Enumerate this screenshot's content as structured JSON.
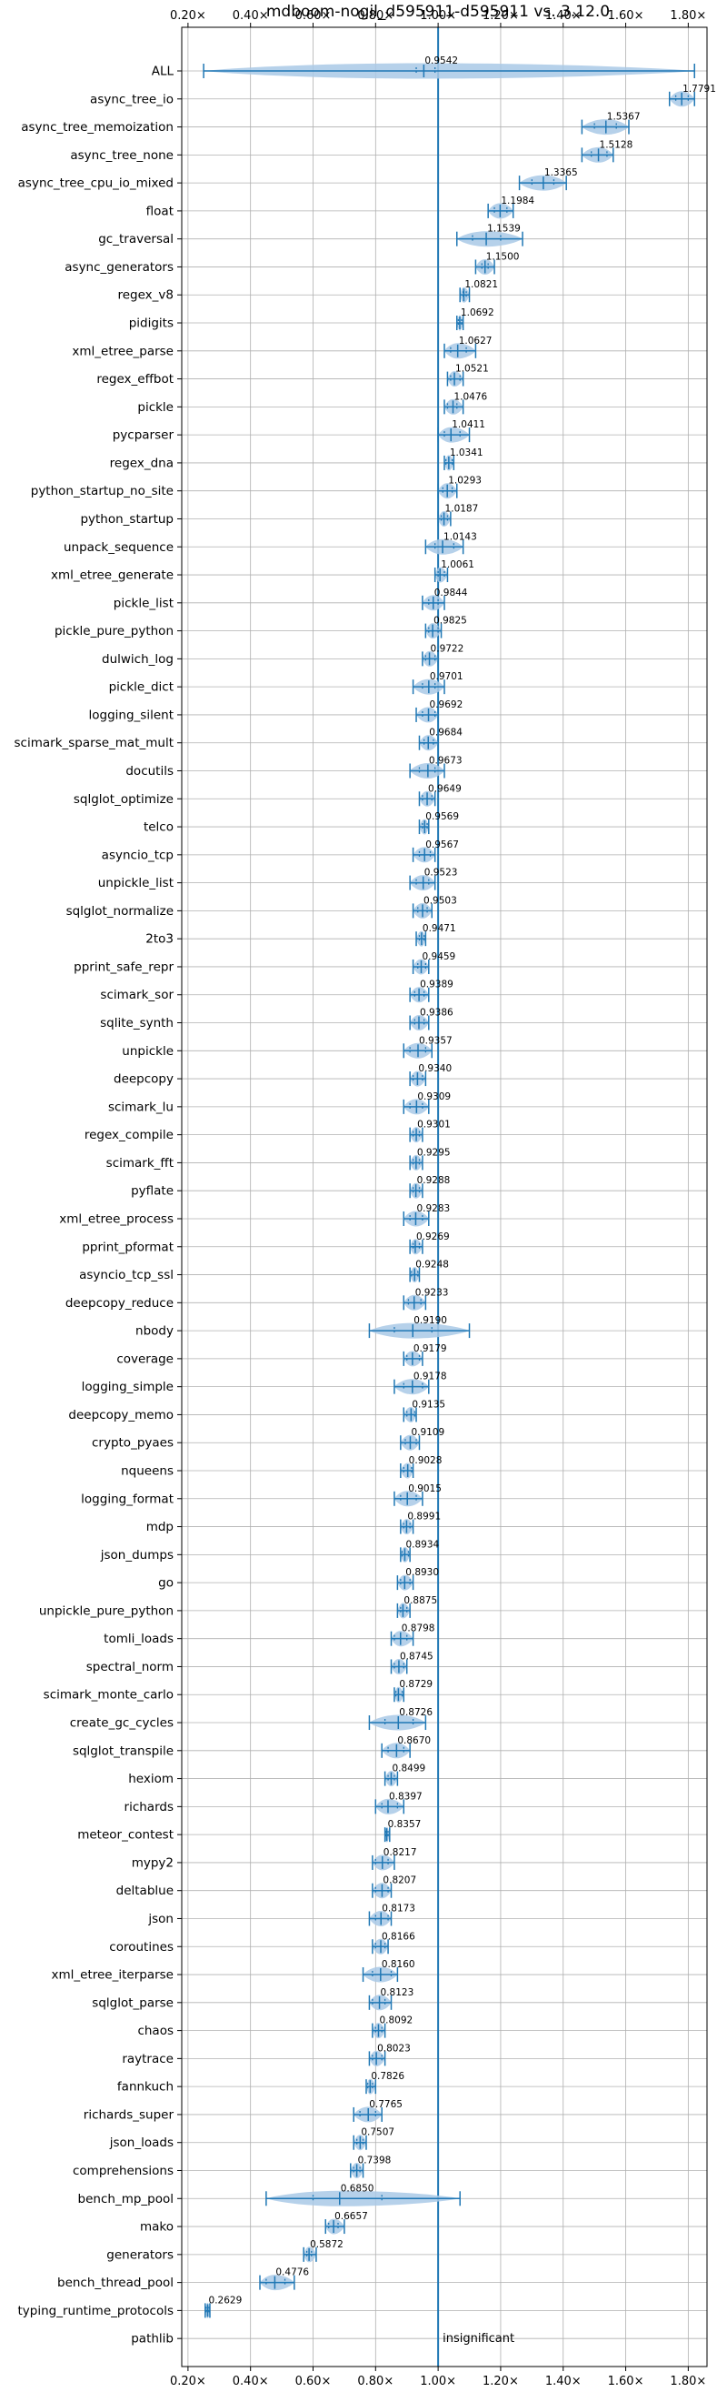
{
  "chart_data": {
    "type": "violin",
    "title": "mdboom-nogil_d595911-d595911 vs. 3.12.0",
    "xlabel": "",
    "ylabel": "",
    "xlim": [
      0.18,
      1.86
    ],
    "x_ticks": [
      0.2,
      0.4,
      0.6,
      0.8,
      1.0,
      1.2,
      1.4,
      1.6,
      1.8
    ],
    "x_tick_labels": [
      "0.20×",
      "0.40×",
      "0.60×",
      "0.80×",
      "1.00×",
      "1.20×",
      "1.40×",
      "1.60×",
      "1.80×"
    ],
    "reference_line": 1.0,
    "grid": true,
    "colors": {
      "accent": "#1f77b4",
      "violin": "#a9c9e6",
      "grid": "#b0b0b0"
    },
    "categories": [
      {
        "label": "ALL",
        "value": 0.9542,
        "value_label": "0.9542",
        "min": 0.25,
        "max": 1.82,
        "q1": 0.93,
        "q3": 0.99
      },
      {
        "label": "async_tree_io",
        "value": 1.7791,
        "value_label": "1.7791",
        "min": 1.74,
        "max": 1.82,
        "q1": 1.76,
        "q3": 1.8
      },
      {
        "label": "async_tree_memoization",
        "value": 1.5367,
        "value_label": "1.5367",
        "min": 1.46,
        "max": 1.61,
        "q1": 1.5,
        "q3": 1.57
      },
      {
        "label": "async_tree_none",
        "value": 1.5128,
        "value_label": "1.5128",
        "min": 1.46,
        "max": 1.56,
        "q1": 1.49,
        "q3": 1.54
      },
      {
        "label": "async_tree_cpu_io_mixed",
        "value": 1.3365,
        "value_label": "1.3365",
        "min": 1.26,
        "max": 1.41,
        "q1": 1.3,
        "q3": 1.37
      },
      {
        "label": "float",
        "value": 1.1984,
        "value_label": "1.1984",
        "min": 1.16,
        "max": 1.24,
        "q1": 1.18,
        "q3": 1.22
      },
      {
        "label": "gc_traversal",
        "value": 1.1539,
        "value_label": "1.1539",
        "min": 1.06,
        "max": 1.27,
        "q1": 1.11,
        "q3": 1.2
      },
      {
        "label": "async_generators",
        "value": 1.15,
        "value_label": "1.1500",
        "min": 1.12,
        "max": 1.18,
        "q1": 1.14,
        "q3": 1.16
      },
      {
        "label": "regex_v8",
        "value": 1.0821,
        "value_label": "1.0821",
        "min": 1.07,
        "max": 1.1,
        "q1": 1.08,
        "q3": 1.09
      },
      {
        "label": "pidigits",
        "value": 1.0692,
        "value_label": "1.0692",
        "min": 1.06,
        "max": 1.08,
        "q1": 1.065,
        "q3": 1.075
      },
      {
        "label": "xml_etree_parse",
        "value": 1.0627,
        "value_label": "1.0627",
        "min": 1.02,
        "max": 1.12,
        "q1": 1.04,
        "q3": 1.09
      },
      {
        "label": "regex_effbot",
        "value": 1.0521,
        "value_label": "1.0521",
        "min": 1.03,
        "max": 1.08,
        "q1": 1.04,
        "q3": 1.07
      },
      {
        "label": "pickle",
        "value": 1.0476,
        "value_label": "1.0476",
        "min": 1.02,
        "max": 1.08,
        "q1": 1.03,
        "q3": 1.06
      },
      {
        "label": "pycparser",
        "value": 1.0411,
        "value_label": "1.0411",
        "min": 1.0,
        "max": 1.1,
        "q1": 1.02,
        "q3": 1.07
      },
      {
        "label": "regex_dna",
        "value": 1.0341,
        "value_label": "1.0341",
        "min": 1.02,
        "max": 1.05,
        "q1": 1.025,
        "q3": 1.045
      },
      {
        "label": "python_startup_no_site",
        "value": 1.0293,
        "value_label": "1.0293",
        "min": 1.0,
        "max": 1.06,
        "q1": 1.015,
        "q3": 1.045
      },
      {
        "label": "python_startup",
        "value": 1.0187,
        "value_label": "1.0187",
        "min": 1.0,
        "max": 1.04,
        "q1": 1.01,
        "q3": 1.03
      },
      {
        "label": "unpack_sequence",
        "value": 1.0143,
        "value_label": "1.0143",
        "min": 0.96,
        "max": 1.08,
        "q1": 0.99,
        "q3": 1.05
      },
      {
        "label": "xml_etree_generate",
        "value": 1.0061,
        "value_label": "1.0061",
        "min": 0.99,
        "max": 1.03,
        "q1": 1.0,
        "q3": 1.02
      },
      {
        "label": "pickle_list",
        "value": 0.9844,
        "value_label": "0.9844",
        "min": 0.95,
        "max": 1.02,
        "q1": 0.97,
        "q3": 1.0
      },
      {
        "label": "pickle_pure_python",
        "value": 0.9825,
        "value_label": "0.9825",
        "min": 0.96,
        "max": 1.01,
        "q1": 0.97,
        "q3": 1.0
      },
      {
        "label": "dulwich_log",
        "value": 0.9722,
        "value_label": "0.9722",
        "min": 0.95,
        "max": 1.0,
        "q1": 0.96,
        "q3": 0.99
      },
      {
        "label": "pickle_dict",
        "value": 0.9701,
        "value_label": "0.9701",
        "min": 0.92,
        "max": 1.02,
        "q1": 0.95,
        "q3": 0.99
      },
      {
        "label": "logging_silent",
        "value": 0.9692,
        "value_label": "0.9692",
        "min": 0.93,
        "max": 1.0,
        "q1": 0.95,
        "q3": 0.99
      },
      {
        "label": "scimark_sparse_mat_mult",
        "value": 0.9684,
        "value_label": "0.9684",
        "min": 0.94,
        "max": 1.0,
        "q1": 0.955,
        "q3": 0.985
      },
      {
        "label": "docutils",
        "value": 0.9673,
        "value_label": "0.9673",
        "min": 0.91,
        "max": 1.02,
        "q1": 0.94,
        "q3": 0.99
      },
      {
        "label": "sqlglot_optimize",
        "value": 0.9649,
        "value_label": "0.9649",
        "min": 0.94,
        "max": 0.99,
        "q1": 0.95,
        "q3": 0.98
      },
      {
        "label": "telco",
        "value": 0.9569,
        "value_label": "0.9569",
        "min": 0.94,
        "max": 0.97,
        "q1": 0.95,
        "q3": 0.965
      },
      {
        "label": "asyncio_tcp",
        "value": 0.9567,
        "value_label": "0.9567",
        "min": 0.92,
        "max": 0.99,
        "q1": 0.94,
        "q3": 0.975
      },
      {
        "label": "unpickle_list",
        "value": 0.9523,
        "value_label": "0.9523",
        "min": 0.91,
        "max": 0.99,
        "q1": 0.93,
        "q3": 0.97
      },
      {
        "label": "sqlglot_normalize",
        "value": 0.9503,
        "value_label": "0.9503",
        "min": 0.92,
        "max": 0.98,
        "q1": 0.935,
        "q3": 0.965
      },
      {
        "label": "2to3",
        "value": 0.9471,
        "value_label": "0.9471",
        "min": 0.93,
        "max": 0.96,
        "q1": 0.94,
        "q3": 0.955
      },
      {
        "label": "pprint_safe_repr",
        "value": 0.9459,
        "value_label": "0.9459",
        "min": 0.92,
        "max": 0.97,
        "q1": 0.935,
        "q3": 0.96
      },
      {
        "label": "scimark_sor",
        "value": 0.9389,
        "value_label": "0.9389",
        "min": 0.91,
        "max": 0.97,
        "q1": 0.925,
        "q3": 0.955
      },
      {
        "label": "sqlite_synth",
        "value": 0.9386,
        "value_label": "0.9386",
        "min": 0.91,
        "max": 0.97,
        "q1": 0.925,
        "q3": 0.955
      },
      {
        "label": "unpickle",
        "value": 0.9357,
        "value_label": "0.9357",
        "min": 0.89,
        "max": 0.98,
        "q1": 0.91,
        "q3": 0.96
      },
      {
        "label": "deepcopy",
        "value": 0.934,
        "value_label": "0.9340",
        "min": 0.91,
        "max": 0.96,
        "q1": 0.92,
        "q3": 0.95
      },
      {
        "label": "scimark_lu",
        "value": 0.9309,
        "value_label": "0.9309",
        "min": 0.89,
        "max": 0.97,
        "q1": 0.91,
        "q3": 0.95
      },
      {
        "label": "regex_compile",
        "value": 0.9301,
        "value_label": "0.9301",
        "min": 0.91,
        "max": 0.95,
        "q1": 0.92,
        "q3": 0.94
      },
      {
        "label": "scimark_fft",
        "value": 0.9295,
        "value_label": "0.9295",
        "min": 0.91,
        "max": 0.95,
        "q1": 0.92,
        "q3": 0.94
      },
      {
        "label": "pyflate",
        "value": 0.9288,
        "value_label": "0.9288",
        "min": 0.91,
        "max": 0.95,
        "q1": 0.92,
        "q3": 0.94
      },
      {
        "label": "xml_etree_process",
        "value": 0.9283,
        "value_label": "0.9283",
        "min": 0.89,
        "max": 0.97,
        "q1": 0.91,
        "q3": 0.95
      },
      {
        "label": "pprint_pformat",
        "value": 0.9269,
        "value_label": "0.9269",
        "min": 0.91,
        "max": 0.95,
        "q1": 0.92,
        "q3": 0.94
      },
      {
        "label": "asyncio_tcp_ssl",
        "value": 0.9248,
        "value_label": "0.9248",
        "min": 0.91,
        "max": 0.94,
        "q1": 0.915,
        "q3": 0.935
      },
      {
        "label": "deepcopy_reduce",
        "value": 0.9233,
        "value_label": "0.9233",
        "min": 0.89,
        "max": 0.96,
        "q1": 0.905,
        "q3": 0.945
      },
      {
        "label": "nbody",
        "value": 0.919,
        "value_label": "0.9190",
        "min": 0.78,
        "max": 1.1,
        "q1": 0.86,
        "q3": 0.98
      },
      {
        "label": "coverage",
        "value": 0.9179,
        "value_label": "0.9179",
        "min": 0.89,
        "max": 0.95,
        "q1": 0.9,
        "q3": 0.94
      },
      {
        "label": "logging_simple",
        "value": 0.9178,
        "value_label": "0.9178",
        "min": 0.86,
        "max": 0.97,
        "q1": 0.89,
        "q3": 0.95
      },
      {
        "label": "deepcopy_memo",
        "value": 0.9135,
        "value_label": "0.9135",
        "min": 0.89,
        "max": 0.93,
        "q1": 0.9,
        "q3": 0.925
      },
      {
        "label": "crypto_pyaes",
        "value": 0.9109,
        "value_label": "0.9109",
        "min": 0.88,
        "max": 0.94,
        "q1": 0.895,
        "q3": 0.93
      },
      {
        "label": "nqueens",
        "value": 0.9028,
        "value_label": "0.9028",
        "min": 0.88,
        "max": 0.92,
        "q1": 0.89,
        "q3": 0.915
      },
      {
        "label": "logging_format",
        "value": 0.9015,
        "value_label": "0.9015",
        "min": 0.86,
        "max": 0.95,
        "q1": 0.88,
        "q3": 0.93
      },
      {
        "label": "mdp",
        "value": 0.8991,
        "value_label": "0.8991",
        "min": 0.88,
        "max": 0.92,
        "q1": 0.89,
        "q3": 0.91
      },
      {
        "label": "json_dumps",
        "value": 0.8934,
        "value_label": "0.8934",
        "min": 0.88,
        "max": 0.91,
        "q1": 0.885,
        "q3": 0.905
      },
      {
        "label": "go",
        "value": 0.893,
        "value_label": "0.8930",
        "min": 0.87,
        "max": 0.92,
        "q1": 0.88,
        "q3": 0.91
      },
      {
        "label": "unpickle_pure_python",
        "value": 0.8875,
        "value_label": "0.8875",
        "min": 0.87,
        "max": 0.91,
        "q1": 0.88,
        "q3": 0.9
      },
      {
        "label": "tomli_loads",
        "value": 0.8798,
        "value_label": "0.8798",
        "min": 0.85,
        "max": 0.92,
        "q1": 0.86,
        "q3": 0.9
      },
      {
        "label": "spectral_norm",
        "value": 0.8745,
        "value_label": "0.8745",
        "min": 0.85,
        "max": 0.9,
        "q1": 0.86,
        "q3": 0.89
      },
      {
        "label": "scimark_monte_carlo",
        "value": 0.8729,
        "value_label": "0.8729",
        "min": 0.86,
        "max": 0.89,
        "q1": 0.865,
        "q3": 0.885
      },
      {
        "label": "create_gc_cycles",
        "value": 0.8726,
        "value_label": "0.8726",
        "min": 0.78,
        "max": 0.96,
        "q1": 0.83,
        "q3": 0.92
      },
      {
        "label": "sqlglot_transpile",
        "value": 0.867,
        "value_label": "0.8670",
        "min": 0.82,
        "max": 0.91,
        "q1": 0.84,
        "q3": 0.89
      },
      {
        "label": "hexiom",
        "value": 0.8499,
        "value_label": "0.8499",
        "min": 0.83,
        "max": 0.87,
        "q1": 0.84,
        "q3": 0.86
      },
      {
        "label": "richards",
        "value": 0.8397,
        "value_label": "0.8397",
        "min": 0.8,
        "max": 0.89,
        "q1": 0.82,
        "q3": 0.87
      },
      {
        "label": "meteor_contest",
        "value": 0.8357,
        "value_label": "0.8357",
        "min": 0.83,
        "max": 0.845,
        "q1": 0.833,
        "q3": 0.84
      },
      {
        "label": "mypy2",
        "value": 0.8217,
        "value_label": "0.8217",
        "min": 0.79,
        "max": 0.86,
        "q1": 0.8,
        "q3": 0.84
      },
      {
        "label": "deltablue",
        "value": 0.8207,
        "value_label": "0.8207",
        "min": 0.79,
        "max": 0.85,
        "q1": 0.8,
        "q3": 0.84
      },
      {
        "label": "json",
        "value": 0.8173,
        "value_label": "0.8173",
        "min": 0.78,
        "max": 0.85,
        "q1": 0.8,
        "q3": 0.84
      },
      {
        "label": "coroutines",
        "value": 0.8166,
        "value_label": "0.8166",
        "min": 0.79,
        "max": 0.84,
        "q1": 0.8,
        "q3": 0.83
      },
      {
        "label": "xml_etree_iterparse",
        "value": 0.816,
        "value_label": "0.8160",
        "min": 0.76,
        "max": 0.87,
        "q1": 0.79,
        "q3": 0.85
      },
      {
        "label": "sqlglot_parse",
        "value": 0.8123,
        "value_label": "0.8123",
        "min": 0.78,
        "max": 0.85,
        "q1": 0.79,
        "q3": 0.83
      },
      {
        "label": "chaos",
        "value": 0.8092,
        "value_label": "0.8092",
        "min": 0.79,
        "max": 0.83,
        "q1": 0.8,
        "q3": 0.82
      },
      {
        "label": "raytrace",
        "value": 0.8023,
        "value_label": "0.8023",
        "min": 0.78,
        "max": 0.83,
        "q1": 0.79,
        "q3": 0.82
      },
      {
        "label": "fannkuch",
        "value": 0.7826,
        "value_label": "0.7826",
        "min": 0.77,
        "max": 0.8,
        "q1": 0.775,
        "q3": 0.79
      },
      {
        "label": "richards_super",
        "value": 0.7765,
        "value_label": "0.7765",
        "min": 0.73,
        "max": 0.82,
        "q1": 0.75,
        "q3": 0.8
      },
      {
        "label": "json_loads",
        "value": 0.7507,
        "value_label": "0.7507",
        "min": 0.73,
        "max": 0.77,
        "q1": 0.74,
        "q3": 0.76
      },
      {
        "label": "comprehensions",
        "value": 0.7398,
        "value_label": "0.7398",
        "min": 0.72,
        "max": 0.76,
        "q1": 0.73,
        "q3": 0.75
      },
      {
        "label": "bench_mp_pool",
        "value": 0.685,
        "value_label": "0.6850",
        "min": 0.45,
        "max": 1.07,
        "q1": 0.6,
        "q3": 0.82
      },
      {
        "label": "mako",
        "value": 0.6657,
        "value_label": "0.6657",
        "min": 0.64,
        "max": 0.7,
        "q1": 0.65,
        "q3": 0.68
      },
      {
        "label": "generators",
        "value": 0.5872,
        "value_label": "0.5872",
        "min": 0.57,
        "max": 0.61,
        "q1": 0.58,
        "q3": 0.595
      },
      {
        "label": "bench_thread_pool",
        "value": 0.4776,
        "value_label": "0.4776",
        "min": 0.43,
        "max": 0.54,
        "q1": 0.45,
        "q3": 0.51
      },
      {
        "label": "typing_runtime_protocols",
        "value": 0.2629,
        "value_label": "0.2629",
        "min": 0.255,
        "max": 0.27,
        "q1": 0.258,
        "q3": 0.267
      },
      {
        "label": "pathlib",
        "value": null,
        "value_label": "insignificant",
        "min": null,
        "max": null,
        "q1": null,
        "q3": null
      }
    ]
  }
}
